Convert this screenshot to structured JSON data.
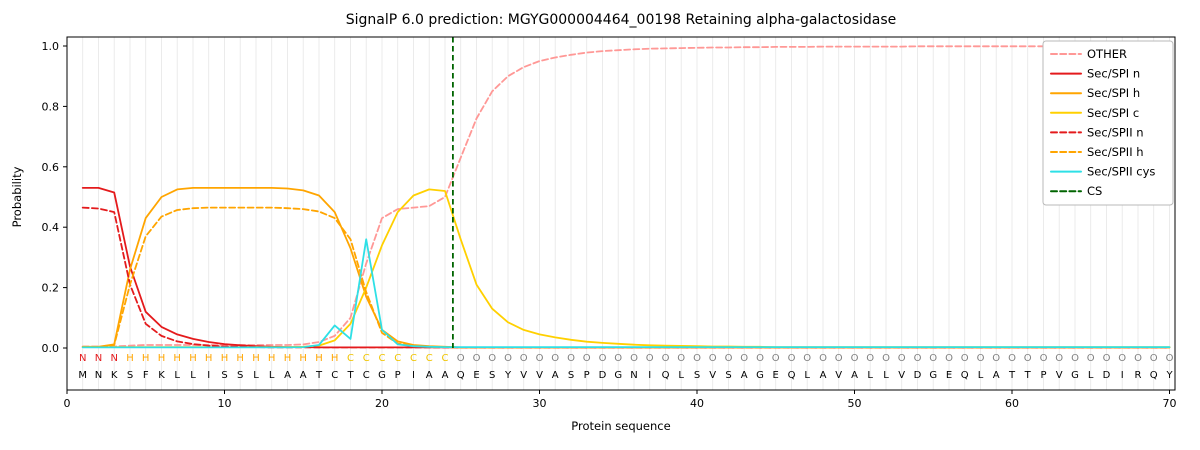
{
  "title": "SignalP 6.0 prediction: MGYG000004464_00198 Retaining alpha-galactosidase",
  "chart_data": {
    "type": "line",
    "title": "SignalP 6.0 prediction: MGYG000004464_00198 Retaining alpha-galactosidase",
    "xlabel": "Protein sequence",
    "ylabel": "Probability",
    "xlim": [
      0,
      70.35
    ],
    "ylim": [
      -0.14,
      1.03
    ],
    "x_ticks": [
      0,
      10,
      20,
      30,
      40,
      50,
      60,
      70
    ],
    "y_ticks": [
      0.0,
      0.2,
      0.4,
      0.6,
      0.8,
      1.0
    ],
    "grid": "vertical-line-per-residue",
    "grid_color": "#e6e6e6",
    "legend_position": "upper right",
    "x_start": 1,
    "series": [
      {
        "name": "OTHER",
        "color": "#ff9896",
        "dash": true,
        "values": [
          0.005,
          0.005,
          0.005,
          0.008,
          0.01,
          0.01,
          0.01,
          0.01,
          0.01,
          0.01,
          0.01,
          0.01,
          0.01,
          0.01,
          0.012,
          0.02,
          0.04,
          0.1,
          0.28,
          0.43,
          0.46,
          0.465,
          0.47,
          0.5,
          0.63,
          0.76,
          0.85,
          0.9,
          0.93,
          0.95,
          0.962,
          0.971,
          0.978,
          0.983,
          0.986,
          0.989,
          0.991,
          0.992,
          0.993,
          0.994,
          0.995,
          0.995,
          0.996,
          0.996,
          0.997,
          0.997,
          0.997,
          0.998,
          0.998,
          0.998,
          0.998,
          0.998,
          0.998,
          0.999
        ]
      },
      {
        "name": "Sec/SPI n",
        "color": "#e41a1c",
        "dash": false,
        "values": [
          0.53,
          0.53,
          0.515,
          0.27,
          0.12,
          0.07,
          0.045,
          0.03,
          0.02,
          0.013,
          0.009,
          0.006,
          0.004,
          0.003,
          0.003,
          0.002
        ]
      },
      {
        "name": "Sec/SPI h",
        "color": "#ffa500",
        "dash": false,
        "values": [
          0.004,
          0.004,
          0.012,
          0.26,
          0.43,
          0.5,
          0.525,
          0.53,
          0.53,
          0.53,
          0.53,
          0.53,
          0.53,
          0.528,
          0.522,
          0.505,
          0.45,
          0.33,
          0.17,
          0.06,
          0.022,
          0.01,
          0.006,
          0.004,
          0.002
        ]
      },
      {
        "name": "Sec/SPI c",
        "color": "#ffd000",
        "dash": false,
        "values": [
          0.003,
          0.003,
          0.003,
          0.003,
          0.003,
          0.003,
          0.003,
          0.003,
          0.003,
          0.003,
          0.003,
          0.003,
          0.003,
          0.003,
          0.004,
          0.008,
          0.025,
          0.08,
          0.2,
          0.34,
          0.45,
          0.505,
          0.525,
          0.52,
          0.36,
          0.21,
          0.13,
          0.085,
          0.06,
          0.045,
          0.035,
          0.027,
          0.021,
          0.017,
          0.014,
          0.011,
          0.009,
          0.008,
          0.007,
          0.006,
          0.005,
          0.005,
          0.004,
          0.004,
          0.003
        ]
      },
      {
        "name": "Sec/SPII n",
        "color": "#e41a1c",
        "dash": true,
        "values": [
          0.465,
          0.462,
          0.45,
          0.21,
          0.08,
          0.04,
          0.022,
          0.013,
          0.008,
          0.005,
          0.004,
          0.003,
          0.002
        ]
      },
      {
        "name": "Sec/SPII h",
        "color": "#ffa500",
        "dash": true,
        "values": [
          0.003,
          0.003,
          0.01,
          0.21,
          0.37,
          0.435,
          0.457,
          0.463,
          0.465,
          0.465,
          0.465,
          0.465,
          0.465,
          0.463,
          0.46,
          0.452,
          0.43,
          0.36,
          0.185,
          0.05,
          0.015,
          0.007,
          0.004,
          0.003,
          0.002
        ]
      },
      {
        "name": "Sec/SPII cys",
        "color": "#2ee0e6",
        "dash": false,
        "values": [
          0.002,
          0.002,
          0.002,
          0.002,
          0.002,
          0.002,
          0.002,
          0.002,
          0.002,
          0.002,
          0.002,
          0.002,
          0.002,
          0.002,
          0.003,
          0.01,
          0.075,
          0.03,
          0.36,
          0.06,
          0.012,
          0.006,
          0.004,
          0.003
        ]
      }
    ],
    "cs": {
      "name": "CS",
      "color": "#006400",
      "dash": true,
      "position": 24.5
    },
    "annotation_row": "NNNHHHHHHHHHHHHHHCCCCCCCOOOOOOOOOOOOOOOOOOOOOOOOOOOOOOOOOOOOOOOOOOOOOO",
    "annotation_colors": {
      "N": "#e41a1c",
      "H": "#ffa500",
      "C": "#f0c400",
      "O": "#808080"
    },
    "sequence": "MNKSFKLLISSLLAATCTCGPIAAQESYVVASPDGNIQLSVSAGEQLAVALLVDGEQLATTPVGLDIRQY"
  }
}
